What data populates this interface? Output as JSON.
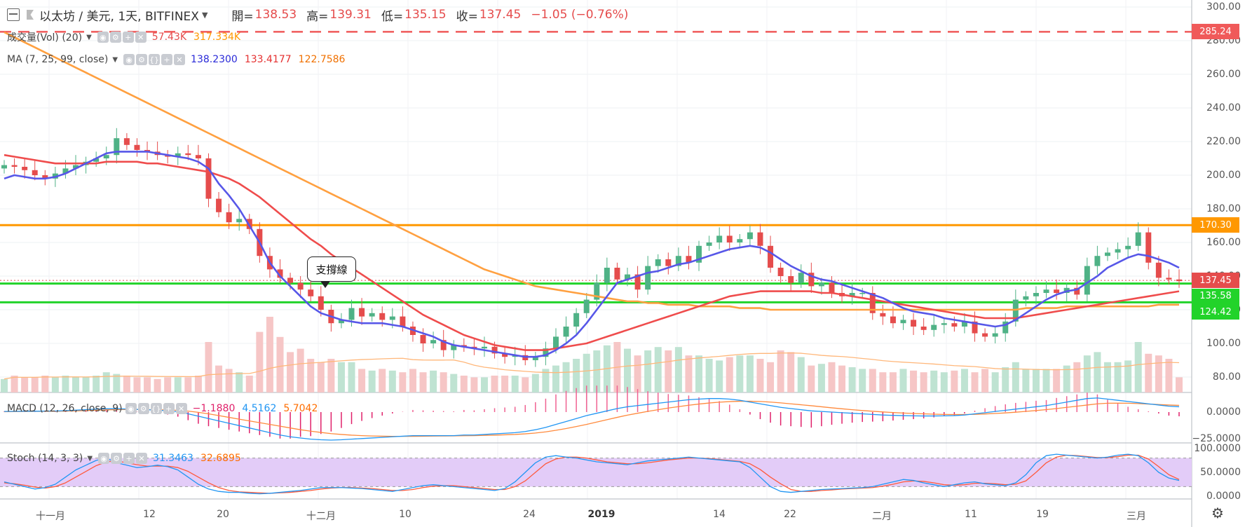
{
  "header": {
    "symbol": "以太坊 / 美元, 1天, BITFINEX",
    "open_label": "開=",
    "open": "138.53",
    "high_label": "高=",
    "high": "139.31",
    "low_label": "低=",
    "low": "135.15",
    "close_label": "收=",
    "close": "137.45",
    "change": "−1.05 (−0.76%)"
  },
  "volume_legend": {
    "label": "成交量(Vol) (20)",
    "value1": "57.43K",
    "value2": "317.334K"
  },
  "ma_legend": {
    "label": "MA (7, 25, 99, close)",
    "ma7": "138.2300",
    "ma25": "133.4177",
    "ma99": "122.7586"
  },
  "macd_legend": {
    "label": "MACD (12, 26, close, 9)",
    "hist": "−1.1880",
    "macd": "4.5162",
    "signal": "5.7042"
  },
  "stoch_legend": {
    "label": "Stoch (14, 3, 3)",
    "k": "31.3463",
    "d": "32.6895"
  },
  "callout": "支撐線",
  "price_axis": [
    "300.00",
    "280.00",
    "260.00",
    "240.00",
    "220.00",
    "200.00",
    "180.00",
    "160.00",
    "140.00",
    "120.00",
    "100.00",
    "80.00"
  ],
  "macd_axis": [
    "0.0000",
    "−25.0000"
  ],
  "stoch_axis": [
    "100.0000",
    "50.0000",
    "0.0000"
  ],
  "badges": [
    {
      "text": "285.24",
      "color": "#f05a5a",
      "price": 285.24
    },
    {
      "text": "170.30",
      "color": "#ff9800",
      "price": 170.3
    },
    {
      "text": "137.45",
      "color": "#e54c4c",
      "price": 137.45
    },
    {
      "text": "135.58",
      "color": "#22d32a",
      "price": 135.58
    },
    {
      "text": "124.42",
      "color": "#22d32a",
      "price": 124.42
    }
  ],
  "x_axis": [
    "十一月",
    "12",
    "20",
    "十二月",
    "10",
    "24",
    "2019",
    "14",
    "22",
    "二月",
    "11",
    "19",
    "三月"
  ],
  "colors": {
    "up": "#4fb286",
    "down": "#e54c4c",
    "ma7": "#5757e8",
    "ma25": "#ef4c4c",
    "ma99": "#ffa040",
    "resistance": "#ff9800",
    "support": "#22d32a",
    "dashed": "#f05a5a",
    "stoch_band": "#e3ccf8",
    "macd_line": "#2196f3",
    "signal_line": "#ff8a3d"
  },
  "settings_icon": "gear-icon",
  "chart_data": {
    "type": "candlestick",
    "symbol": "以太坊 / 美元, 1天, BITFINEX",
    "price_range": [
      72,
      304
    ],
    "horizontal_lines": {
      "dashed": 285.24,
      "resistance": 170.3,
      "support_upper": 135.58,
      "support_lower": 124.42
    },
    "close_approx": [
      206,
      205,
      203,
      200,
      198,
      201,
      204,
      206,
      208,
      210,
      212,
      222,
      218,
      215,
      214,
      212,
      211,
      213,
      212,
      210,
      186,
      178,
      172,
      174,
      168,
      152,
      144,
      139,
      136,
      132,
      128,
      120,
      112,
      114,
      121,
      116,
      118,
      114,
      116,
      110,
      105,
      100,
      102,
      96,
      99,
      98,
      97,
      98,
      94,
      92,
      93,
      90,
      92,
      97,
      104,
      110,
      118,
      126,
      136,
      145,
      138,
      141,
      132,
      146,
      150,
      146,
      152,
      148,
      158,
      160,
      164,
      160,
      162,
      166,
      158,
      145,
      140,
      136,
      142,
      134,
      136,
      130,
      128,
      130,
      130,
      118,
      116,
      112,
      114,
      110,
      108,
      111,
      112,
      110,
      113,
      106,
      104,
      106,
      113,
      126,
      128,
      130,
      132,
      130,
      133,
      129,
      146,
      152,
      154,
      156,
      158,
      166,
      148,
      139,
      138,
      137
    ],
    "volume_approx": [
      8,
      10,
      9,
      9,
      10,
      9,
      10,
      9,
      9,
      10,
      12,
      11,
      10,
      9,
      9,
      8,
      9,
      9,
      9,
      10,
      30,
      16,
      14,
      12,
      10,
      36,
      45,
      33,
      24,
      26,
      20,
      18,
      20,
      18,
      18,
      14,
      13,
      14,
      13,
      12,
      14,
      12,
      13,
      12,
      11,
      10,
      9,
      9,
      10,
      10,
      10,
      9,
      11,
      14,
      16,
      18,
      20,
      23,
      25,
      28,
      30,
      26,
      22,
      25,
      27,
      25,
      27,
      22,
      22,
      20,
      19,
      21,
      22,
      22,
      20,
      18,
      25,
      24,
      21,
      16,
      17,
      18,
      16,
      15,
      14,
      14,
      12,
      12,
      14,
      13,
      12,
      13,
      12,
      13,
      14,
      12,
      14,
      12,
      15,
      18,
      14,
      14,
      14,
      14,
      16,
      18,
      22,
      24,
      18,
      18,
      19,
      30,
      23,
      22,
      20,
      9
    ],
    "ma7_approx": [
      198,
      200,
      199,
      198,
      198,
      199,
      201,
      204,
      207,
      210,
      213,
      214,
      214,
      214,
      214,
      213,
      212,
      211,
      210,
      208,
      204,
      195,
      188,
      180,
      170,
      160,
      148,
      140,
      134,
      128,
      122,
      118,
      116,
      114,
      113,
      112,
      112,
      112,
      111,
      110,
      108,
      106,
      104,
      101,
      99,
      98,
      97,
      96,
      95,
      94,
      93,
      92,
      92,
      93,
      96,
      100,
      105,
      112,
      120,
      128,
      136,
      138,
      140,
      142,
      143,
      145,
      147,
      148,
      150,
      152,
      154,
      156,
      157,
      158,
      157,
      154,
      150,
      146,
      143,
      140,
      138,
      137,
      135,
      133,
      131,
      129,
      127,
      124,
      121,
      119,
      118,
      117,
      115,
      114,
      113,
      112,
      111,
      110,
      111,
      114,
      118,
      122,
      126,
      129,
      131,
      132,
      136,
      140,
      145,
      148,
      151,
      153,
      152,
      150,
      148,
      145
    ],
    "ma25_approx": [
      212,
      211,
      210,
      209,
      208,
      207,
      207,
      207,
      207,
      207,
      208,
      208,
      208,
      208,
      207,
      207,
      206,
      205,
      204,
      203,
      202,
      200,
      198,
      195,
      191,
      187,
      182,
      177,
      172,
      167,
      162,
      158,
      153,
      149,
      145,
      141,
      137,
      133,
      129,
      125,
      121,
      117,
      114,
      111,
      108,
      105,
      103,
      101,
      99,
      98,
      97,
      96,
      96,
      96,
      97,
      98,
      99,
      100,
      102,
      104,
      106,
      108,
      110,
      112,
      114,
      116,
      118,
      120,
      122,
      124,
      126,
      128,
      129,
      130,
      131,
      131,
      131,
      131,
      131,
      131,
      130,
      130,
      129,
      128,
      127,
      126,
      125,
      124,
      123,
      122,
      121,
      120,
      119,
      118,
      117,
      116,
      115,
      115,
      115,
      115,
      116,
      117,
      118,
      119,
      120,
      121,
      122,
      123,
      124,
      125,
      126,
      127,
      128,
      129,
      130,
      131
    ],
    "ma99_approx": [
      285,
      282,
      279,
      276,
      273,
      270,
      267,
      264,
      261,
      258,
      255,
      252,
      249,
      246,
      243,
      240,
      237,
      234,
      231,
      228,
      225,
      222,
      219,
      216,
      213,
      210,
      207,
      204,
      201,
      198,
      195,
      192,
      189,
      186,
      183,
      180,
      177,
      174,
      171,
      168,
      165,
      162,
      159,
      156,
      153,
      150,
      147,
      144,
      142,
      140,
      138,
      136,
      134,
      133,
      132,
      131,
      130,
      129,
      128,
      127,
      126,
      125,
      125,
      124,
      124,
      123,
      123,
      123,
      122,
      122,
      122,
      122,
      121,
      121,
      121,
      120,
      120,
      120,
      120,
      120,
      120,
      120,
      120,
      120,
      120,
      120,
      120,
      120,
      120,
      120,
      120,
      120,
      120,
      120,
      120,
      120,
      120,
      120,
      120,
      120,
      121,
      121,
      121,
      121,
      122,
      122,
      122,
      122,
      122,
      122,
      122,
      122,
      122,
      123,
      123,
      123
    ],
    "stoch_k_approx": [
      30,
      25,
      20,
      15,
      18,
      25,
      40,
      55,
      65,
      75,
      80,
      70,
      65,
      60,
      62,
      65,
      62,
      55,
      40,
      25,
      15,
      10,
      8,
      8,
      6,
      5,
      6,
      8,
      10,
      12,
      15,
      18,
      18,
      18,
      17,
      16,
      14,
      12,
      10,
      14,
      18,
      22,
      24,
      22,
      20,
      18,
      16,
      14,
      12,
      16,
      30,
      50,
      70,
      82,
      85,
      82,
      80,
      76,
      72,
      70,
      68,
      66,
      70,
      74,
      76,
      78,
      80,
      82,
      80,
      78,
      76,
      74,
      72,
      60,
      40,
      20,
      10,
      8,
      10,
      12,
      14,
      15,
      16,
      17,
      18,
      20,
      25,
      30,
      35,
      33,
      28,
      24,
      20,
      24,
      28,
      30,
      26,
      24,
      22,
      28,
      45,
      70,
      85,
      88,
      86,
      84,
      82,
      80,
      82,
      86,
      88,
      85,
      70,
      50,
      38,
      33
    ],
    "stoch_d_approx": [
      28,
      26,
      23,
      19,
      17,
      20,
      28,
      40,
      52,
      64,
      72,
      74,
      70,
      66,
      63,
      63,
      63,
      60,
      52,
      40,
      28,
      18,
      12,
      9,
      8,
      7,
      6,
      7,
      8,
      10,
      12,
      15,
      17,
      18,
      18,
      17,
      16,
      14,
      12,
      12,
      14,
      18,
      21,
      22,
      22,
      20,
      18,
      16,
      14,
      14,
      20,
      32,
      50,
      68,
      78,
      82,
      82,
      80,
      76,
      72,
      70,
      68,
      68,
      70,
      73,
      76,
      78,
      80,
      80,
      79,
      77,
      75,
      73,
      68,
      56,
      40,
      26,
      14,
      10,
      10,
      12,
      13,
      15,
      16,
      17,
      18,
      21,
      25,
      30,
      32,
      31,
      28,
      24,
      23,
      24,
      27,
      27,
      26,
      24,
      25,
      32,
      50,
      70,
      82,
      86,
      85,
      83,
      81,
      81,
      83,
      86,
      86,
      78,
      62,
      45,
      35
    ],
    "macd_approx": [
      0.5,
      0.6,
      0.7,
      0.7,
      0.8,
      0.9,
      1.2,
      1.6,
      2.1,
      2.5,
      2.8,
      2.8,
      2.6,
      2.3,
      2.0,
      1.6,
      1.1,
      0.2,
      -1.5,
      -3.5,
      -5.5,
      -7.5,
      -9.5,
      -11.5,
      -13.5,
      -15.5,
      -17.5,
      -19.5,
      -21,
      -22,
      -23,
      -23.5,
      -23.8,
      -23.5,
      -23,
      -22.5,
      -22,
      -21.5,
      -21,
      -20.5,
      -20,
      -20,
      -20,
      -20,
      -20,
      -19.5,
      -19.5,
      -19,
      -18.5,
      -18,
      -17.5,
      -16.5,
      -15,
      -13,
      -10.5,
      -8,
      -5.5,
      -3,
      -1,
      1,
      3,
      4.5,
      5.5,
      6.5,
      7.5,
      8.5,
      9.5,
      10.5,
      11,
      11.5,
      11.5,
      11,
      10,
      8.5,
      7,
      5.5,
      4,
      3,
      2,
      1,
      0.5,
      0,
      -0.5,
      -1,
      -1.5,
      -2,
      -2.5,
      -2.8,
      -3,
      -3.2,
      -3.3,
      -3.3,
      -3.2,
      -3,
      -2.5,
      -1.5,
      -0.5,
      0.5,
      1.5,
      2.5,
      3.5,
      4.5,
      5.5,
      7,
      8.5,
      10,
      11.5,
      12,
      11,
      10,
      9,
      8,
      7,
      6,
      5,
      4.5
    ],
    "signal_approx": [
      0.3,
      0.4,
      0.5,
      0.6,
      0.6,
      0.7,
      0.8,
      1.0,
      1.3,
      1.6,
      1.9,
      2.1,
      2.2,
      2.2,
      2.1,
      2.0,
      1.8,
      1.5,
      0.8,
      -0.2,
      -1.5,
      -3,
      -4.5,
      -6,
      -7.5,
      -9,
      -10.5,
      -12,
      -13.5,
      -15,
      -16.2,
      -17.3,
      -18.3,
      -19,
      -19.6,
      -20,
      -20.3,
      -20.5,
      -20.6,
      -20.6,
      -20.6,
      -20.5,
      -20.4,
      -20.3,
      -20.2,
      -20.1,
      -20,
      -19.8,
      -19.6,
      -19.3,
      -19,
      -18.5,
      -17.8,
      -16.8,
      -15.5,
      -14,
      -12.3,
      -10.5,
      -8.5,
      -6.5,
      -4.5,
      -2.6,
      -1,
      0.6,
      2,
      3.4,
      4.6,
      5.8,
      6.8,
      7.7,
      8.4,
      8.9,
      9.2,
      9.2,
      9.0,
      8.5,
      7.8,
      7,
      6.2,
      5.4,
      4.5,
      3.6,
      2.8,
      2,
      1.3,
      0.7,
      0.1,
      -0.4,
      -0.8,
      -1.2,
      -1.5,
      -1.8,
      -2,
      -2.1,
      -2.1,
      -1.9,
      -1.6,
      -1.2,
      -0.7,
      -0.1,
      0.6,
      1.3,
      2.1,
      3,
      4,
      5,
      6,
      7,
      7.5,
      7.6,
      7.5,
      7.2,
      6.8,
      6.4,
      6,
      5.7
    ]
  }
}
